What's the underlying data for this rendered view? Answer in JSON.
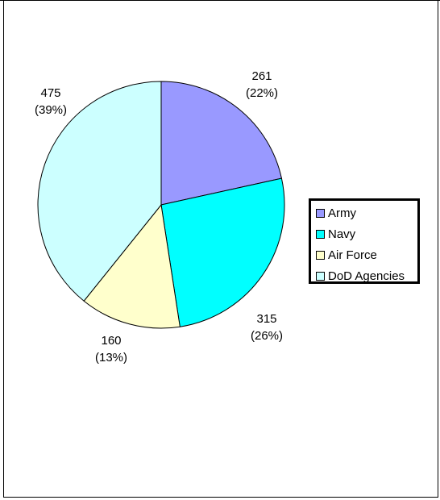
{
  "chart_data": {
    "type": "pie",
    "slices": [
      {
        "name": "Army",
        "value": 261,
        "percent": "22%",
        "color": "#9999ff"
      },
      {
        "name": "Navy",
        "value": 315,
        "percent": "26%",
        "color": "#00ffff"
      },
      {
        "name": "Air Force",
        "value": 160,
        "percent": "13%",
        "color": "#ffffcc"
      },
      {
        "name": "DoD Agencies",
        "value": 475,
        "percent": "39%",
        "color": "#ccffff"
      }
    ],
    "legend_position": "right"
  }
}
